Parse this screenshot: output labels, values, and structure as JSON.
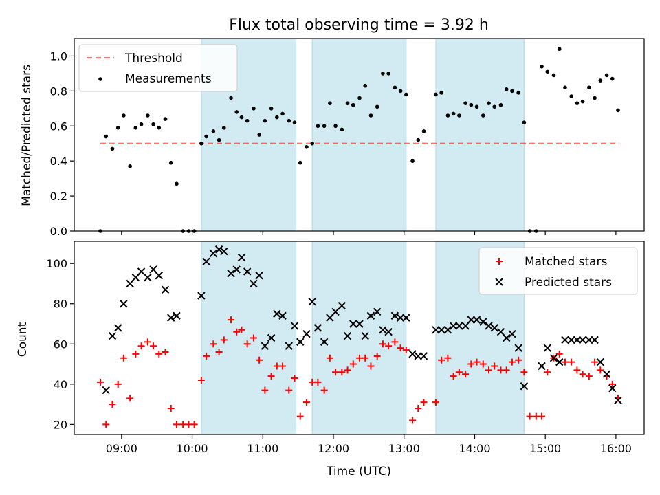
{
  "title": "Flux total observing time = 3.92 h",
  "colors": {
    "shade": "#add8e6",
    "threshold": "#ff0000",
    "measurements": "#000000",
    "matched": "#ff0000",
    "predicted": "#000000"
  },
  "chart_data": [
    {
      "type": "scatter",
      "ylabel": "Matched/Predicted stars",
      "xlim": [
        8.33,
        16.4
      ],
      "ylim": [
        0,
        1.1
      ],
      "yticks": [
        0.0,
        0.2,
        0.4,
        0.6,
        0.8,
        1.0
      ],
      "ytick_labels": [
        "0.0",
        "0.2",
        "0.4",
        "0.6",
        "0.8",
        "1.0"
      ],
      "xticks": [
        9,
        10,
        11,
        12,
        13,
        14,
        15,
        16
      ],
      "legend_position": "upper left",
      "shaded_intervals": [
        [
          10.13,
          11.47
        ],
        [
          11.7,
          13.03
        ],
        [
          13.45,
          14.7
        ]
      ],
      "threshold": {
        "name": "Threshold",
        "value": 0.5,
        "x_range": [
          8.7,
          16.05
        ]
      },
      "series": [
        {
          "name": "Measurements",
          "marker": "dot",
          "x": [
            8.7,
            8.78,
            8.87,
            8.95,
            9.03,
            9.12,
            9.2,
            9.28,
            9.37,
            9.45,
            9.53,
            9.62,
            9.7,
            9.78,
            9.87,
            9.95,
            10.03,
            10.13,
            10.2,
            10.3,
            10.38,
            10.45,
            10.55,
            10.63,
            10.7,
            10.78,
            10.87,
            10.95,
            11.03,
            11.12,
            11.2,
            11.28,
            11.37,
            11.45,
            11.53,
            11.62,
            11.7,
            11.78,
            11.87,
            11.95,
            12.03,
            12.12,
            12.2,
            12.28,
            12.37,
            12.45,
            12.53,
            12.62,
            12.7,
            12.78,
            12.87,
            12.95,
            13.03,
            13.12,
            13.2,
            13.28,
            13.45,
            13.53,
            13.62,
            13.7,
            13.78,
            13.87,
            13.95,
            14.03,
            14.12,
            14.2,
            14.28,
            14.37,
            14.45,
            14.53,
            14.62,
            14.7,
            14.78,
            14.87,
            14.95,
            15.03,
            15.12,
            15.2,
            15.28,
            15.37,
            15.45,
            15.53,
            15.62,
            15.7,
            15.78,
            15.87,
            15.95,
            16.03
          ],
          "y": [
            0.0,
            0.54,
            0.47,
            0.59,
            0.66,
            0.37,
            0.59,
            0.61,
            0.66,
            0.61,
            0.59,
            0.64,
            0.39,
            0.27,
            0.0,
            0.0,
            0.0,
            0.5,
            0.54,
            0.57,
            0.52,
            0.59,
            0.76,
            0.68,
            0.65,
            0.63,
            0.7,
            0.55,
            0.63,
            0.7,
            0.65,
            0.67,
            0.63,
            0.62,
            0.39,
            0.48,
            0.5,
            0.6,
            0.6,
            0.73,
            0.6,
            0.58,
            0.73,
            0.72,
            0.76,
            0.83,
            0.66,
            0.71,
            0.9,
            0.9,
            0.82,
            0.8,
            0.78,
            0.4,
            0.52,
            0.57,
            0.78,
            0.79,
            0.66,
            0.67,
            0.66,
            0.73,
            0.72,
            0.71,
            0.66,
            0.73,
            0.71,
            0.72,
            0.81,
            0.8,
            0.79,
            0.62,
            0.0,
            0.0,
            0.94,
            0.91,
            0.89,
            1.04,
            0.82,
            0.77,
            0.73,
            0.74,
            0.82,
            0.76,
            0.86,
            0.89,
            0.87,
            0.69
          ]
        }
      ]
    },
    {
      "type": "scatter",
      "xlabel": "Time (UTC)",
      "ylabel": "Count",
      "xlim": [
        8.33,
        16.4
      ],
      "ylim": [
        15,
        111
      ],
      "yticks": [
        20,
        40,
        60,
        80,
        100
      ],
      "ytick_labels": [
        "20",
        "40",
        "60",
        "80",
        "100"
      ],
      "xticks": [
        9,
        10,
        11,
        12,
        13,
        14,
        15,
        16
      ],
      "xtick_labels": [
        "09:00",
        "10:00",
        "11:00",
        "12:00",
        "13:00",
        "14:00",
        "15:00",
        "16:00"
      ],
      "legend_position": "upper right",
      "shaded_intervals": [
        [
          10.13,
          11.47
        ],
        [
          11.7,
          13.03
        ],
        [
          13.45,
          14.7
        ]
      ],
      "series": [
        {
          "name": "Matched stars",
          "marker": "plus",
          "x": [
            8.7,
            8.78,
            8.87,
            8.95,
            9.03,
            9.12,
            9.2,
            9.28,
            9.37,
            9.45,
            9.53,
            9.62,
            9.7,
            9.78,
            9.87,
            9.95,
            10.03,
            10.13,
            10.2,
            10.3,
            10.38,
            10.45,
            10.55,
            10.63,
            10.7,
            10.78,
            10.87,
            10.95,
            11.03,
            11.12,
            11.2,
            11.28,
            11.37,
            11.45,
            11.53,
            11.62,
            11.7,
            11.78,
            11.87,
            11.95,
            12.03,
            12.12,
            12.2,
            12.28,
            12.37,
            12.45,
            12.53,
            12.62,
            12.7,
            12.78,
            12.87,
            12.95,
            13.03,
            13.12,
            13.2,
            13.28,
            13.45,
            13.53,
            13.62,
            13.7,
            13.78,
            13.87,
            13.95,
            14.03,
            14.12,
            14.2,
            14.28,
            14.37,
            14.45,
            14.53,
            14.62,
            14.7,
            14.78,
            14.87,
            14.95,
            15.03,
            15.12,
            15.2,
            15.28,
            15.37,
            15.45,
            15.53,
            15.62,
            15.7,
            15.78,
            15.87,
            15.95,
            16.03
          ],
          "y": [
            41,
            20,
            30,
            40,
            53,
            33,
            55,
            59,
            61,
            59,
            55,
            56,
            28,
            20,
            20,
            20,
            20,
            42,
            54,
            60,
            56,
            62,
            72,
            66,
            67,
            60,
            63,
            52,
            37,
            44,
            49,
            49,
            37,
            43,
            24,
            31,
            41,
            41,
            37,
            53,
            46,
            46,
            47,
            50,
            53,
            53,
            49,
            54,
            60,
            59,
            61,
            58,
            57,
            22,
            28,
            31,
            31,
            52,
            53,
            44,
            46,
            45,
            50,
            51,
            50,
            47,
            49,
            47,
            47,
            51,
            52,
            46,
            24,
            24,
            24,
            46,
            53,
            55,
            51,
            51,
            47,
            45,
            44,
            51,
            47,
            44,
            40,
            33
          ],
          "y_note": "",
          "y_extra": []
        },
        {
          "name": "Predicted stars",
          "marker": "x",
          "x": [
            8.78,
            8.87,
            8.95,
            9.03,
            9.12,
            9.2,
            9.28,
            9.37,
            9.45,
            9.53,
            9.62,
            9.7,
            9.78,
            10.13,
            10.2,
            10.3,
            10.38,
            10.45,
            10.55,
            10.63,
            10.7,
            10.78,
            10.87,
            10.95,
            11.03,
            11.12,
            11.2,
            11.28,
            11.37,
            11.45,
            11.53,
            11.62,
            11.7,
            11.78,
            11.87,
            11.95,
            12.03,
            12.12,
            12.2,
            12.28,
            12.37,
            12.45,
            12.53,
            12.62,
            12.7,
            12.78,
            12.87,
            12.95,
            13.03,
            13.12,
            13.2,
            13.28,
            13.45,
            13.53,
            13.62,
            13.7,
            13.78,
            13.87,
            13.95,
            14.03,
            14.12,
            14.2,
            14.28,
            14.37,
            14.45,
            14.53,
            14.62,
            14.7,
            14.95,
            15.03,
            15.12,
            15.2,
            15.28,
            15.37,
            15.45,
            15.53,
            15.62,
            15.7,
            15.78,
            15.87,
            15.95,
            16.03
          ],
          "y": [
            37,
            64,
            68,
            80,
            90,
            93,
            96,
            93,
            97,
            94,
            87,
            73,
            74,
            84,
            101,
            105,
            107,
            106,
            95,
            97,
            103,
            96,
            90,
            94,
            59,
            63,
            75,
            74,
            59,
            69,
            61,
            65,
            81,
            68,
            61,
            73,
            76,
            79,
            64,
            70,
            70,
            64,
            74,
            76,
            67,
            66,
            74,
            73,
            73,
            55,
            54,
            54,
            67,
            67,
            67,
            69,
            69,
            69,
            72,
            72,
            71,
            69,
            68,
            66,
            63,
            65,
            58,
            39,
            49,
            58,
            53,
            51,
            62,
            62,
            62,
            62,
            62,
            62,
            51,
            45,
            38,
            32
          ]
        }
      ]
    }
  ]
}
